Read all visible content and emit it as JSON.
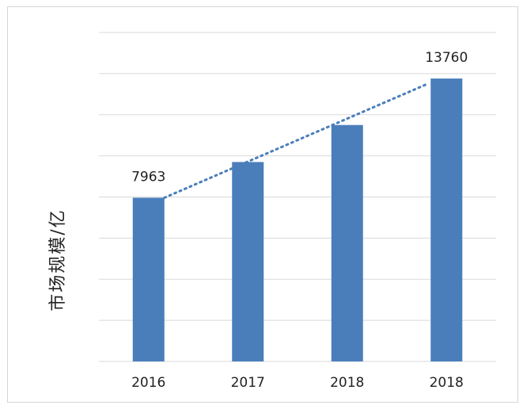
{
  "chart_data": {
    "type": "bar",
    "categories": [
      "2016",
      "2017",
      "2018",
      "2018"
    ],
    "values": [
      7963,
      9700,
      11500,
      13760
    ],
    "data_labels": [
      "7963",
      "",
      "",
      "13760"
    ],
    "title": "",
    "xlabel": "",
    "ylabel": "市场规模/亿",
    "ylim": [
      0,
      16000
    ],
    "y_tick_step": 2000,
    "grid": true,
    "trendline": {
      "style": "dotted",
      "from_value": 7963,
      "to_value": 13500
    },
    "colors": {
      "bar": "#4a7ebb",
      "grid": "#d9d9d9",
      "trendline": "#4a7ebb"
    }
  }
}
